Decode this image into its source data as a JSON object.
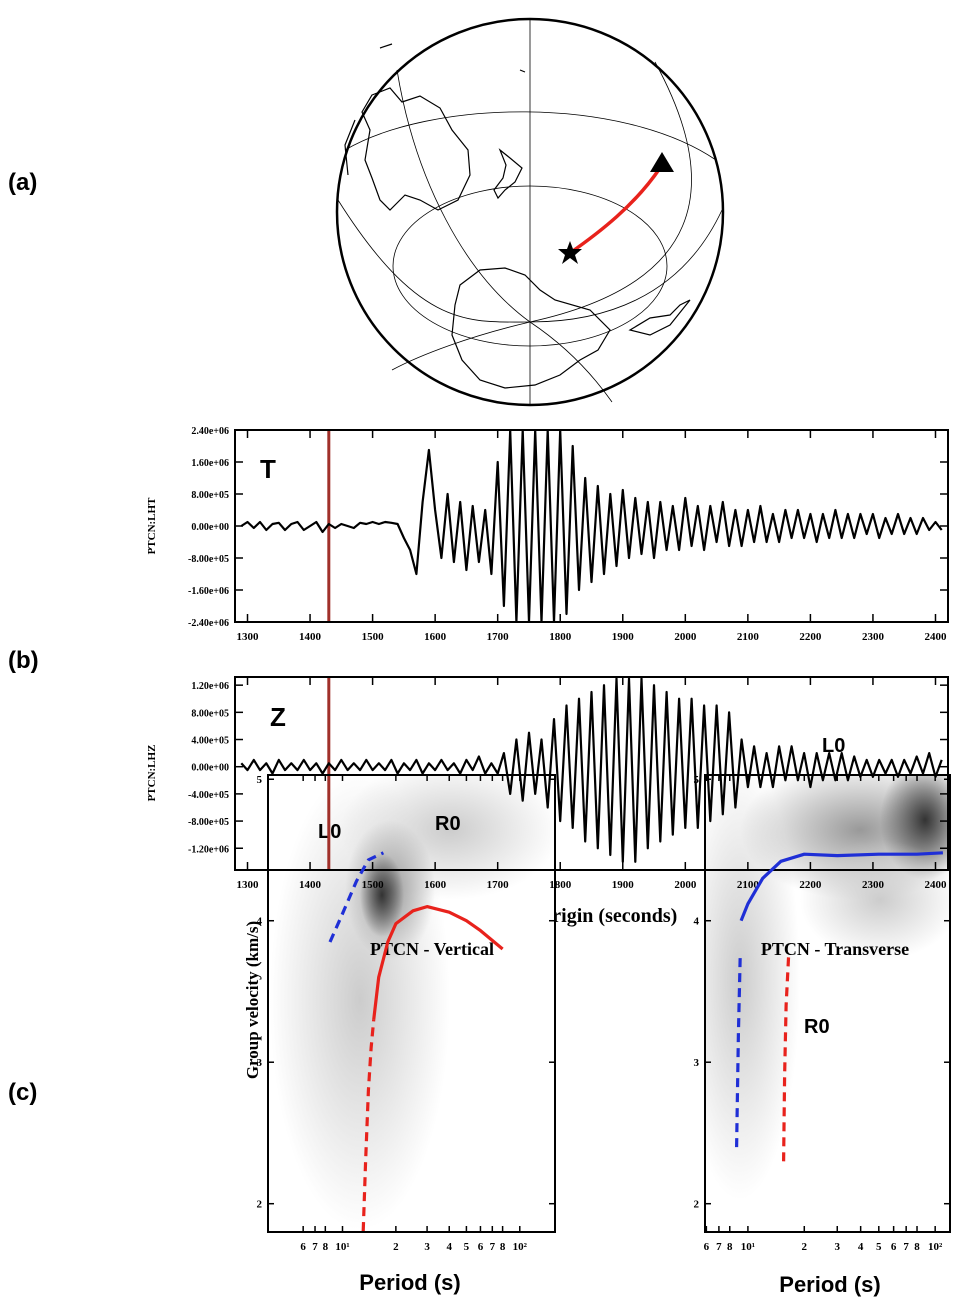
{
  "panel_labels": [
    "(a)",
    "(b)",
    "(c)"
  ],
  "chart_data": [
    {
      "type": "line",
      "trace_label": "T",
      "ylabel": "PTCN:LHT",
      "x": [
        1290,
        1300,
        1310,
        1320,
        1330,
        1340,
        1350,
        1360,
        1370,
        1380,
        1390,
        1400,
        1410,
        1420,
        1430,
        1440,
        1450,
        1460,
        1470,
        1480,
        1490,
        1500,
        1510,
        1520,
        1530,
        1540,
        1550,
        1560,
        1570,
        1580,
        1590,
        1600,
        1610,
        1620,
        1630,
        1640,
        1650,
        1660,
        1670,
        1680,
        1690,
        1700,
        1710,
        1720,
        1730,
        1740,
        1750,
        1760,
        1770,
        1780,
        1790,
        1800,
        1810,
        1820,
        1830,
        1840,
        1850,
        1860,
        1870,
        1880,
        1890,
        1900,
        1910,
        1920,
        1930,
        1940,
        1950,
        1960,
        1970,
        1980,
        1990,
        2000,
        2010,
        2020,
        2030,
        2040,
        2050,
        2060,
        2070,
        2080,
        2090,
        2100,
        2110,
        2120,
        2130,
        2140,
        2150,
        2160,
        2170,
        2180,
        2190,
        2200,
        2210,
        2220,
        2230,
        2240,
        2250,
        2260,
        2270,
        2280,
        2290,
        2300,
        2310,
        2320,
        2330,
        2340,
        2350,
        2360,
        2370,
        2380,
        2390,
        2400,
        2410
      ],
      "series": [
        {
          "color": "#000000",
          "values": [
            0,
            100000,
            -50000,
            100000,
            -100000,
            50000,
            80000,
            -100000,
            50000,
            100000,
            -100000,
            0,
            100000,
            -150000,
            50000,
            -50000,
            50000,
            0,
            -50000,
            80000,
            50000,
            100000,
            50000,
            100000,
            80000,
            50000,
            -300000,
            -600000,
            -1200000,
            600000,
            1900000,
            400000,
            -800000,
            800000,
            -900000,
            600000,
            -1100000,
            500000,
            -900000,
            400000,
            -1200000,
            1600000,
            -2000000,
            2400000,
            -2400000,
            2400000,
            -2400000,
            2400000,
            -2400000,
            2400000,
            -2400000,
            2400000,
            -2200000,
            2000000,
            -1600000,
            1200000,
            -1400000,
            1000000,
            -1200000,
            800000,
            -1000000,
            900000,
            -800000,
            700000,
            -700000,
            600000,
            -800000,
            600000,
            -600000,
            500000,
            -600000,
            700000,
            -500000,
            500000,
            -600000,
            500000,
            -400000,
            600000,
            -500000,
            400000,
            -500000,
            400000,
            -400000,
            500000,
            -400000,
            300000,
            -400000,
            400000,
            -300000,
            400000,
            -300000,
            300000,
            -400000,
            300000,
            -300000,
            400000,
            -300000,
            300000,
            -300000,
            300000,
            -200000,
            300000,
            -300000,
            200000,
            -200000,
            300000,
            -200000,
            200000,
            -200000,
            200000,
            -100000,
            100000,
            -100000
          ]
        }
      ],
      "xlim": [
        1280,
        2420
      ],
      "xticks": [
        1300,
        1400,
        1500,
        1600,
        1700,
        1800,
        1900,
        2000,
        2100,
        2200,
        2300,
        2400
      ],
      "ylim": [
        -2400000,
        2400000
      ],
      "yticks": [
        {
          "value": 2400000,
          "label": "2.40e+06"
        },
        {
          "value": 1600000,
          "label": "1.60e+06"
        },
        {
          "value": 800000,
          "label": "8.00e+05"
        },
        {
          "value": 0,
          "label": "0.00e+00"
        },
        {
          "value": -800000,
          "label": "-8.00e+05"
        },
        {
          "value": -1600000,
          "label": "-1.60e+06"
        },
        {
          "value": -2400000,
          "label": "-2.40e+06"
        }
      ],
      "marker_x": 1430,
      "marker_color": "#a0302a"
    },
    {
      "type": "line",
      "trace_label": "Z",
      "ylabel": "PTCN:LHZ",
      "xlabel": "time from origin (seconds)",
      "x": [
        1290,
        1300,
        1310,
        1320,
        1330,
        1340,
        1350,
        1360,
        1370,
        1380,
        1390,
        1400,
        1410,
        1420,
        1430,
        1440,
        1450,
        1460,
        1470,
        1480,
        1490,
        1500,
        1510,
        1520,
        1530,
        1540,
        1550,
        1560,
        1570,
        1580,
        1590,
        1600,
        1610,
        1620,
        1630,
        1640,
        1650,
        1660,
        1670,
        1680,
        1690,
        1700,
        1710,
        1720,
        1730,
        1740,
        1750,
        1760,
        1770,
        1780,
        1790,
        1800,
        1810,
        1820,
        1830,
        1840,
        1850,
        1860,
        1870,
        1880,
        1890,
        1900,
        1910,
        1920,
        1930,
        1940,
        1950,
        1960,
        1970,
        1980,
        1990,
        2000,
        2010,
        2020,
        2030,
        2040,
        2050,
        2060,
        2070,
        2080,
        2090,
        2100,
        2110,
        2120,
        2130,
        2140,
        2150,
        2160,
        2170,
        2180,
        2190,
        2200,
        2210,
        2220,
        2230,
        2240,
        2250,
        2260,
        2270,
        2280,
        2290,
        2300,
        2310,
        2320,
        2330,
        2340,
        2350,
        2360,
        2370,
        2380,
        2390,
        2400,
        2410
      ],
      "series": [
        {
          "color": "#000000",
          "values": [
            50000,
            -50000,
            100000,
            -50000,
            50000,
            -100000,
            100000,
            -50000,
            50000,
            -50000,
            100000,
            -50000,
            50000,
            -100000,
            50000,
            -50000,
            100000,
            -50000,
            50000,
            -50000,
            100000,
            -50000,
            50000,
            -50000,
            100000,
            -100000,
            50000,
            -50000,
            100000,
            -100000,
            50000,
            -50000,
            100000,
            -50000,
            50000,
            -100000,
            100000,
            -50000,
            150000,
            -100000,
            50000,
            -100000,
            200000,
            -400000,
            400000,
            -500000,
            500000,
            -400000,
            400000,
            -600000,
            700000,
            -800000,
            900000,
            -900000,
            1000000,
            -1100000,
            1100000,
            -1200000,
            1200000,
            -1300000,
            1300000,
            -1400000,
            1300000,
            -1400000,
            1300000,
            -1200000,
            1200000,
            -1100000,
            1100000,
            -1000000,
            1000000,
            -900000,
            1000000,
            -900000,
            900000,
            -800000,
            900000,
            -700000,
            800000,
            -600000,
            400000,
            -300000,
            300000,
            -300000,
            200000,
            -300000,
            300000,
            -200000,
            300000,
            -200000,
            200000,
            -300000,
            200000,
            -200000,
            200000,
            -200000,
            200000,
            -200000,
            150000,
            -150000,
            100000,
            -150000,
            100000,
            -100000,
            100000,
            -150000,
            100000,
            -100000,
            150000,
            -100000,
            200000,
            -150000,
            100000
          ]
        }
      ],
      "xlim": [
        1280,
        2420
      ],
      "xticks": [
        1300,
        1400,
        1500,
        1600,
        1700,
        1800,
        1900,
        2000,
        2100,
        2200,
        2300,
        2400
      ],
      "ylim": [
        -1520000,
        1320000
      ],
      "yticks": [
        {
          "value": 1200000,
          "label": "1.20e+06"
        },
        {
          "value": 800000,
          "label": "8.00e+05"
        },
        {
          "value": 400000,
          "label": "4.00e+05"
        },
        {
          "value": 0,
          "label": "0.00e+00"
        },
        {
          "value": -400000,
          "label": "-4.00e+05"
        },
        {
          "value": -800000,
          "label": "-8.00e+05"
        },
        {
          "value": -1200000,
          "label": "-1.20e+06"
        }
      ],
      "marker_x": 1430,
      "marker_color": "#a0302a"
    },
    {
      "type": "line",
      "title": "PTCN - Vertical",
      "xlabel": "Period (s)",
      "ylabel": "Group velocity (km/s)",
      "xscale": "log",
      "xlim": [
        3.8,
        158
      ],
      "xticks": [
        6,
        7,
        8,
        {
          "value": 10,
          "label": "10¹"
        },
        {
          "value": 20,
          "label": "2"
        },
        {
          "value": 30,
          "label": "3"
        },
        {
          "value": 40,
          "label": "4"
        },
        {
          "value": 50,
          "label": "5"
        },
        {
          "value": 60,
          "label": "6"
        },
        {
          "value": 70,
          "label": "7"
        },
        {
          "value": 80,
          "label": "8"
        },
        {
          "value": 100,
          "label": "10²"
        }
      ],
      "ylim": [
        1.8,
        5.03
      ],
      "yticks": [
        2,
        3,
        4,
        5
      ],
      "series": [
        {
          "name": "L0",
          "color": "#1f2fd6",
          "style": "dashed",
          "x": [
            8.5,
            10,
            12,
            14,
            17
          ],
          "values": [
            3.85,
            4.05,
            4.28,
            4.43,
            4.48
          ]
        },
        {
          "name": "R0",
          "color": "#e8221c",
          "style": "solid",
          "x": [
            15,
            16,
            18,
            20,
            25,
            30,
            40,
            50,
            60,
            80
          ],
          "values": [
            3.3,
            3.6,
            3.85,
            3.98,
            4.07,
            4.1,
            4.06,
            4.0,
            3.93,
            3.8
          ]
        },
        {
          "color": "#e8221c",
          "style": "dashed",
          "x": [
            13,
            13.5,
            14,
            14.5,
            15
          ],
          "values": [
            1.7,
            2.3,
            2.8,
            3.1,
            3.3
          ]
        }
      ]
    },
    {
      "type": "line",
      "title": "PTCN - Transverse",
      "xlabel": "Period (s)",
      "xscale": "log",
      "xlim": [
        5.9,
        120
      ],
      "xticks": [
        6,
        7,
        8,
        {
          "value": 10,
          "label": "10¹"
        },
        {
          "value": 20,
          "label": "2"
        },
        {
          "value": 30,
          "label": "3"
        },
        {
          "value": 40,
          "label": "4"
        },
        {
          "value": 50,
          "label": "5"
        },
        {
          "value": 60,
          "label": "6"
        },
        {
          "value": 70,
          "label": "7"
        },
        {
          "value": 80,
          "label": "8"
        },
        {
          "value": 100,
          "label": "10²"
        }
      ],
      "ylim": [
        1.8,
        5.03
      ],
      "yticks": [
        2,
        3,
        4,
        5
      ],
      "series": [
        {
          "name": "L0",
          "color": "#1f2fd6",
          "style": "solid",
          "x": [
            9.2,
            10,
            12,
            15,
            20,
            30,
            50,
            80,
            110
          ],
          "values": [
            4.0,
            4.12,
            4.3,
            4.42,
            4.47,
            4.46,
            4.47,
            4.47,
            4.48
          ]
        },
        {
          "color": "#1f2fd6",
          "style": "dashed",
          "x": [
            8.7,
            8.9,
            9.1
          ],
          "values": [
            2.4,
            3.2,
            3.75
          ]
        },
        {
          "name": "R0",
          "color": "#e8221c",
          "style": "dashed",
          "x": [
            15.5,
            15.7,
            16,
            16.5
          ],
          "values": [
            2.3,
            2.9,
            3.4,
            3.75
          ]
        }
      ]
    }
  ]
}
